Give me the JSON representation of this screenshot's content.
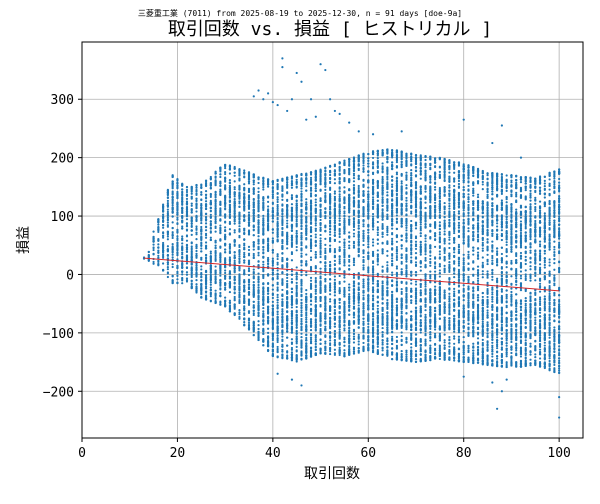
{
  "chart_data": {
    "type": "scatter",
    "suptitle": "三菱重工業 (7011) from 2025-08-19 to 2025-12-30, n = 91 days [doe-9a]",
    "title": "取引回数 vs. 損益 [ ヒストリカル ]",
    "xlabel": "取引回数",
    "ylabel": "損益",
    "xlim": [
      0,
      105
    ],
    "ylim": [
      -280,
      398
    ],
    "x_ticks": [
      0,
      20,
      40,
      60,
      80,
      100
    ],
    "y_ticks": [
      -200,
      -100,
      0,
      100,
      200,
      300
    ],
    "grid": true,
    "legend": "none",
    "point_color": "#1f77b4",
    "trend_color": "#d62728",
    "trend_line": {
      "x": [
        13,
        100
      ],
      "y": [
        28,
        -28
      ]
    },
    "point_envelope": [
      {
        "x": 13,
        "low": 25,
        "high": 30
      },
      {
        "x": 16,
        "low": 15,
        "high": 95
      },
      {
        "x": 19,
        "low": -15,
        "high": 170
      },
      {
        "x": 22,
        "low": -15,
        "high": 150
      },
      {
        "x": 25,
        "low": -40,
        "high": 155
      },
      {
        "x": 30,
        "low": -55,
        "high": 190
      },
      {
        "x": 35,
        "low": -95,
        "high": 175
      },
      {
        "x": 40,
        "low": -140,
        "high": 160
      },
      {
        "x": 45,
        "low": -150,
        "high": 170
      },
      {
        "x": 50,
        "low": -135,
        "high": 180
      },
      {
        "x": 55,
        "low": -140,
        "high": 195
      },
      {
        "x": 60,
        "low": -130,
        "high": 210
      },
      {
        "x": 65,
        "low": -145,
        "high": 215
      },
      {
        "x": 70,
        "low": -150,
        "high": 205
      },
      {
        "x": 75,
        "low": -145,
        "high": 200
      },
      {
        "x": 80,
        "low": -150,
        "high": 190
      },
      {
        "x": 85,
        "low": -155,
        "high": 175
      },
      {
        "x": 90,
        "low": -160,
        "high": 170
      },
      {
        "x": 95,
        "low": -155,
        "high": 165
      },
      {
        "x": 100,
        "low": -170,
        "high": 180
      }
    ],
    "outliers": [
      {
        "x": 36,
        "y": 305
      },
      {
        "x": 37,
        "y": 315
      },
      {
        "x": 38,
        "y": 300
      },
      {
        "x": 39,
        "y": 310
      },
      {
        "x": 40,
        "y": 295
      },
      {
        "x": 41,
        "y": 290
      },
      {
        "x": 42,
        "y": 370
      },
      {
        "x": 42,
        "y": 355
      },
      {
        "x": 43,
        "y": 280
      },
      {
        "x": 44,
        "y": 300
      },
      {
        "x": 45,
        "y": 345
      },
      {
        "x": 46,
        "y": 330
      },
      {
        "x": 47,
        "y": 265
      },
      {
        "x": 48,
        "y": 300
      },
      {
        "x": 49,
        "y": 270
      },
      {
        "x": 50,
        "y": 360
      },
      {
        "x": 51,
        "y": 350
      },
      {
        "x": 52,
        "y": 300
      },
      {
        "x": 53,
        "y": 280
      },
      {
        "x": 54,
        "y": 275
      },
      {
        "x": 56,
        "y": 260
      },
      {
        "x": 58,
        "y": 245
      },
      {
        "x": 61,
        "y": 240
      },
      {
        "x": 67,
        "y": 245
      },
      {
        "x": 80,
        "y": 265
      },
      {
        "x": 86,
        "y": 225
      },
      {
        "x": 88,
        "y": 255
      },
      {
        "x": 92,
        "y": 200
      },
      {
        "x": 41,
        "y": -170
      },
      {
        "x": 44,
        "y": -180
      },
      {
        "x": 46,
        "y": -190
      },
      {
        "x": 80,
        "y": -175
      },
      {
        "x": 86,
        "y": -185
      },
      {
        "x": 87,
        "y": -230
      },
      {
        "x": 88,
        "y": -200
      },
      {
        "x": 89,
        "y": -180
      },
      {
        "x": 100,
        "y": -245
      },
      {
        "x": 100,
        "y": -210
      }
    ]
  }
}
